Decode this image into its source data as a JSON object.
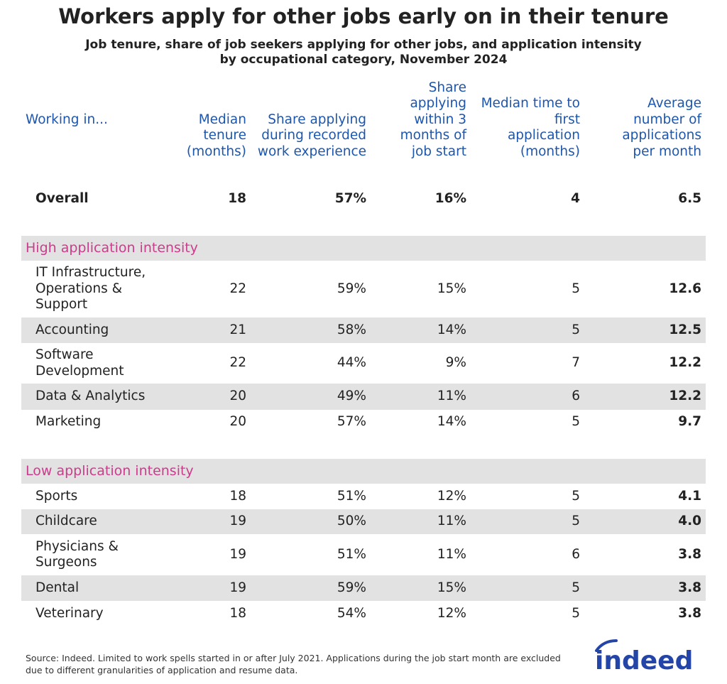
{
  "chart_data": {
    "type": "table",
    "title": "Workers apply for other jobs early on in their tenure",
    "subtitle_lines": [
      "Job tenure, share of job seekers applying for other jobs, and application intensity",
      "by occupational category, November 2024"
    ],
    "columns": [
      "Working in...",
      "Median tenure (months)",
      "Share applying during recorded work experience",
      "Share applying within 3 months of job start",
      "Median time to first application (months)",
      "Average number of applications per month"
    ],
    "rows": [
      {
        "type": "overall",
        "label": "Overall",
        "values": [
          "18",
          "57%",
          "16%",
          "4",
          "6.5"
        ]
      },
      {
        "type": "section",
        "label": "High application intensity"
      },
      {
        "type": "row",
        "label": "IT Infrastructure, Operations & Support",
        "values": [
          "22",
          "59%",
          "15%",
          "5",
          "12.6"
        ]
      },
      {
        "type": "row",
        "label": "Accounting",
        "values": [
          "21",
          "58%",
          "14%",
          "5",
          "12.5"
        ]
      },
      {
        "type": "row",
        "label": "Software Development",
        "values": [
          "22",
          "44%",
          "9%",
          "7",
          "12.2"
        ]
      },
      {
        "type": "row",
        "label": "Data & Analytics",
        "values": [
          "20",
          "49%",
          "11%",
          "6",
          "12.2"
        ]
      },
      {
        "type": "row",
        "label": "Marketing",
        "values": [
          "20",
          "57%",
          "14%",
          "5",
          "9.7"
        ]
      },
      {
        "type": "section",
        "label": "Low application intensity"
      },
      {
        "type": "row",
        "label": "Sports",
        "values": [
          "18",
          "51%",
          "12%",
          "5",
          "4.1"
        ]
      },
      {
        "type": "row",
        "label": "Childcare",
        "values": [
          "19",
          "50%",
          "11%",
          "5",
          "4.0"
        ]
      },
      {
        "type": "row",
        "label": "Physicians & Surgeons",
        "values": [
          "19",
          "51%",
          "11%",
          "6",
          "3.8"
        ]
      },
      {
        "type": "row",
        "label": "Dental",
        "values": [
          "19",
          "59%",
          "15%",
          "5",
          "3.8"
        ]
      },
      {
        "type": "row",
        "label": "Veterinary",
        "values": [
          "18",
          "54%",
          "12%",
          "5",
          "3.8"
        ]
      }
    ],
    "colors": {
      "header": "#1d56ad",
      "section": "#cc3b8c",
      "band": "#e3e2e2",
      "text": "#222222",
      "logo": "#2445a8"
    }
  },
  "source": "Source: Indeed. Limited to work spells started in or after July 2021. Applications during the job start month are excluded due to different granularities of application and resume data.",
  "logo_text": "indeed"
}
